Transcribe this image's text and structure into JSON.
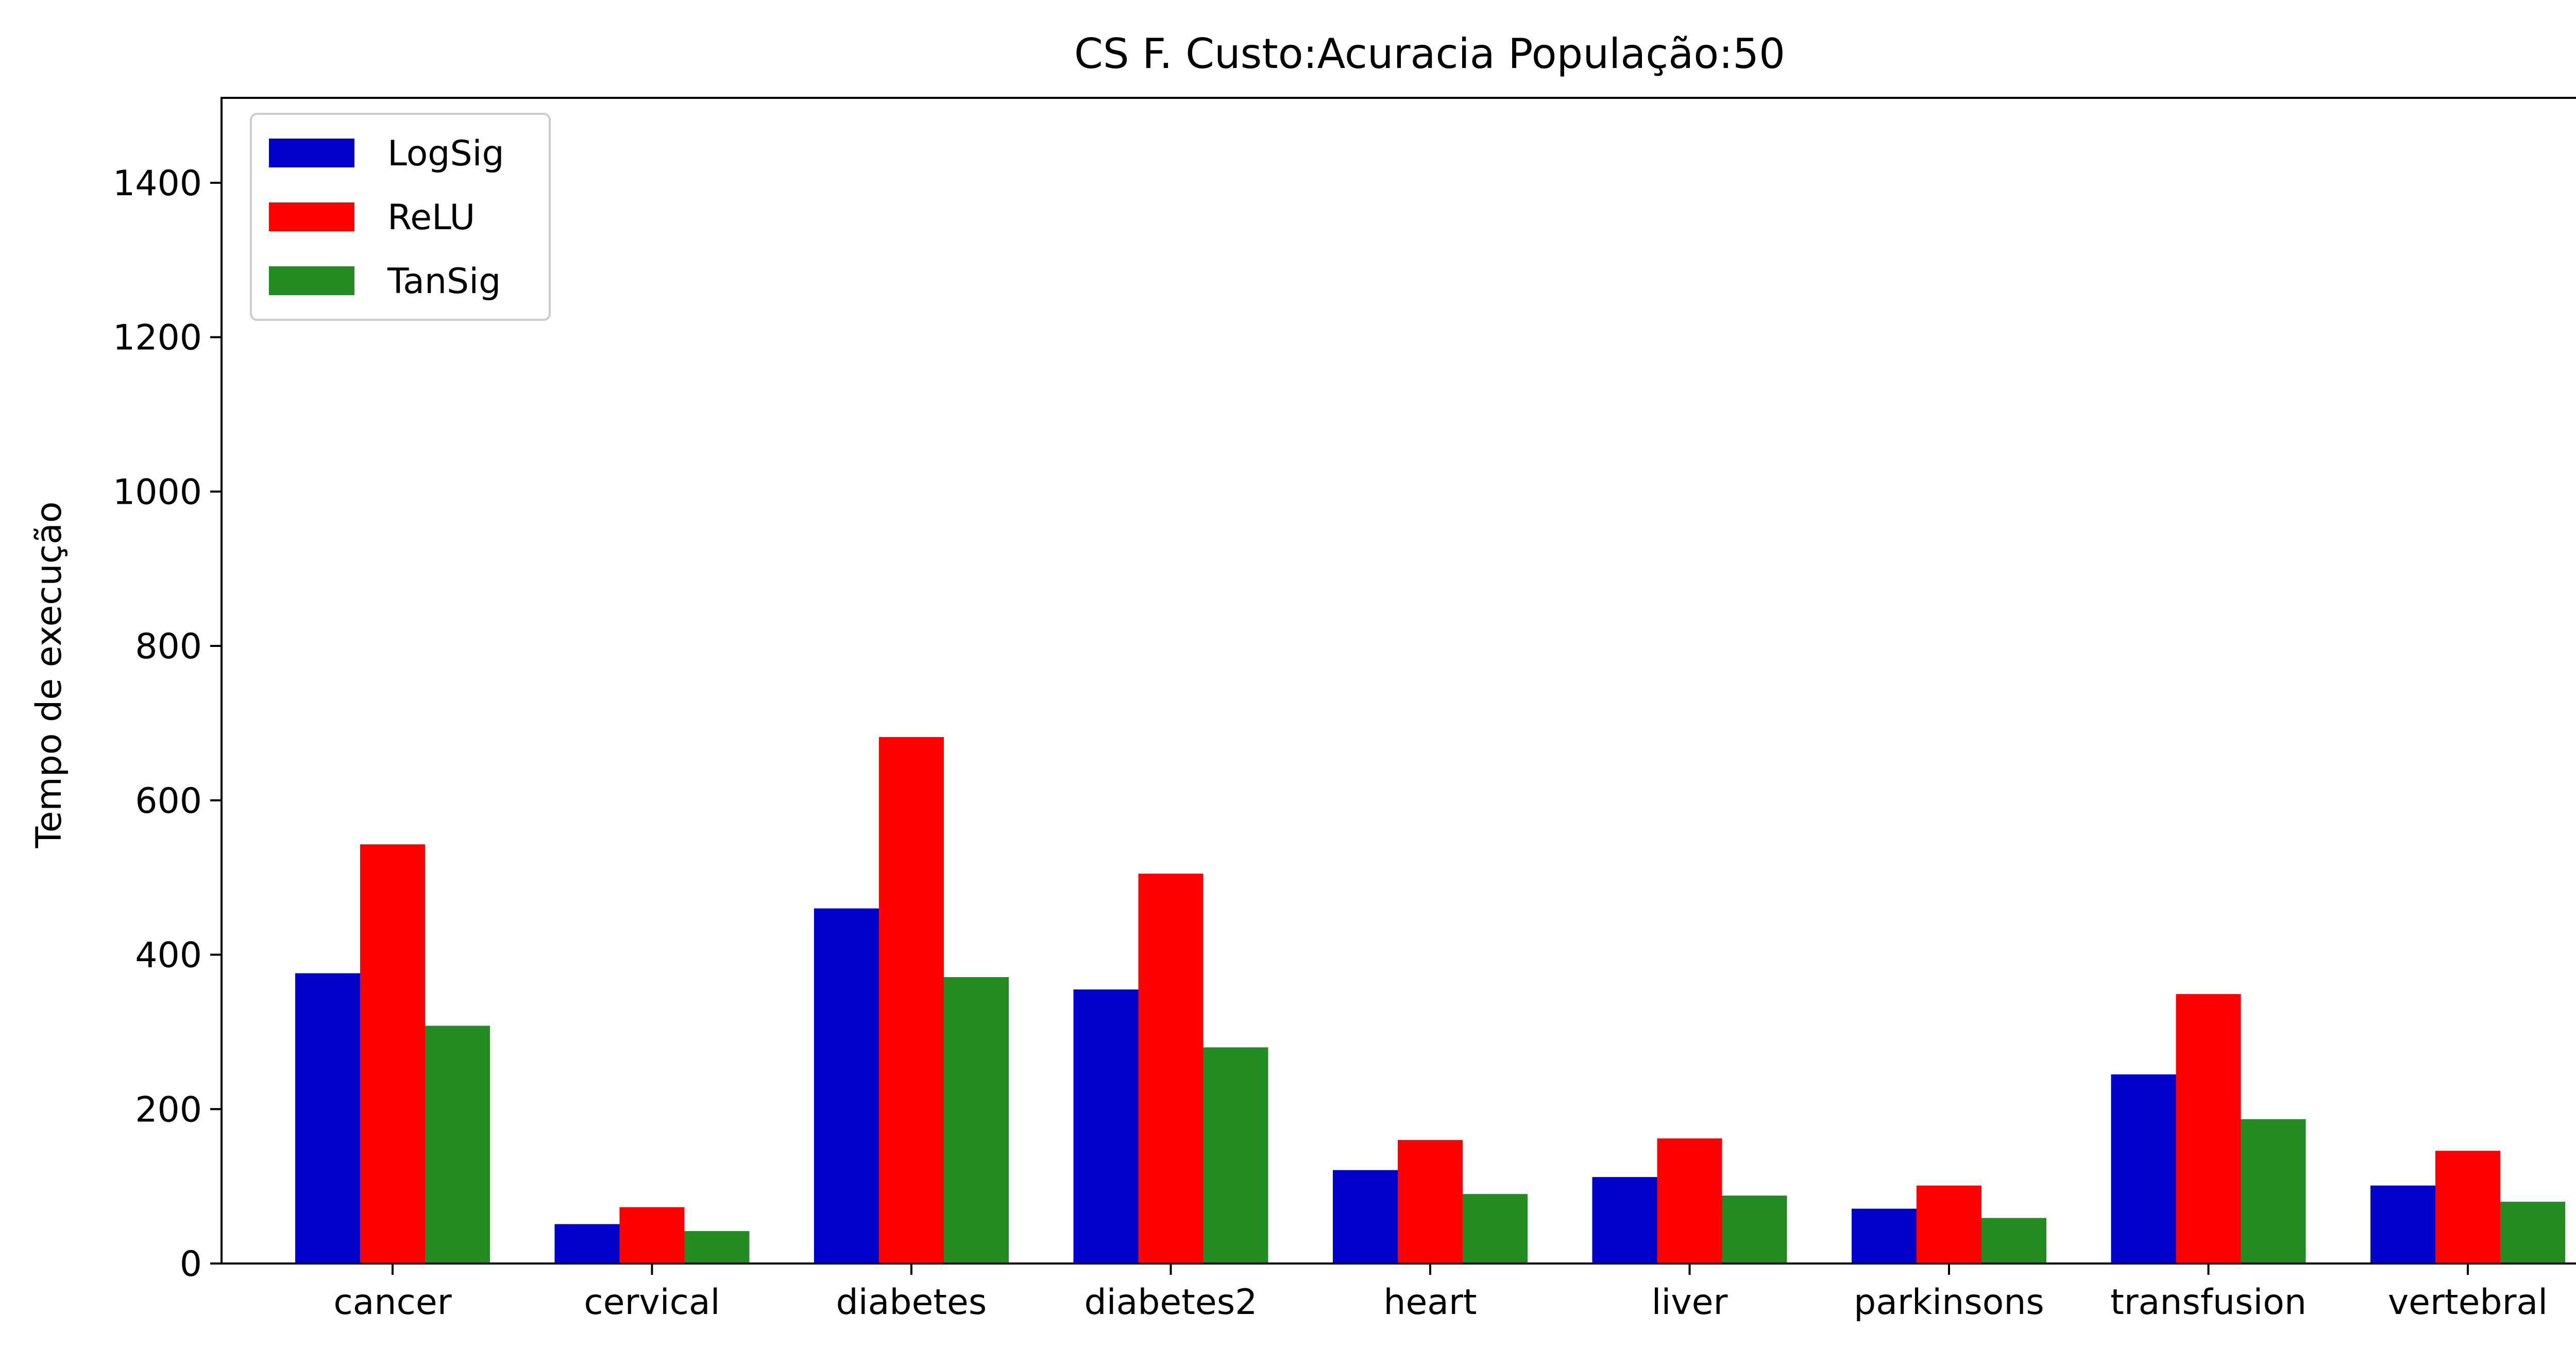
{
  "chart_data": {
    "type": "bar",
    "title": "CS F. Custo:Acuracia População:50",
    "xlabel": "",
    "ylabel": "Tempo de execução",
    "ylim": [
      0,
      1510
    ],
    "yticks": [
      0,
      200,
      400,
      600,
      800,
      1000,
      1200,
      1400
    ],
    "categories": [
      "cancer",
      "cervical",
      "diabetes",
      "diabetes2",
      "heart",
      "liver",
      "parkinsons",
      "transfusion",
      "vertebral"
    ],
    "series": [
      {
        "name": "LogSig",
        "color": "#0000cc",
        "values": [
          376,
          51,
          460,
          355,
          121,
          112,
          71,
          245,
          101
        ]
      },
      {
        "name": "ReLU",
        "color": "#ff0000",
        "values": [
          543,
          73,
          682,
          505,
          160,
          162,
          101,
          349,
          146
        ]
      },
      {
        "name": "TanSig",
        "color": "#228b22",
        "values": [
          308,
          42,
          371,
          280,
          90,
          88,
          59,
          187,
          80
        ]
      }
    ],
    "legend_position": "top-left",
    "grid": false
  }
}
